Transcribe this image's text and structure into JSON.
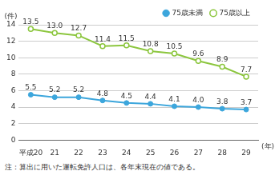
{
  "chart_data": {
    "type": "line",
    "categories": [
      "平成20",
      "21",
      "22",
      "23",
      "24",
      "25",
      "26",
      "27",
      "28",
      "29"
    ],
    "x_label": "(年)",
    "y_label": "(件)",
    "note": "注：算出に用いた運転免許人口は、各年末現在の値である。",
    "series": [
      {
        "name": "75歳未満",
        "color": "#3ca6dc",
        "marker": "circle",
        "values": [
          5.5,
          5.2,
          5.2,
          4.8,
          4.5,
          4.4,
          4.1,
          4.0,
          3.8,
          3.7
        ],
        "value_labels": [
          "5.5",
          "5.2",
          "5.2",
          "4.8",
          "4.5",
          "4.4",
          "4.1",
          "4.0",
          "3.8",
          "3.7"
        ]
      },
      {
        "name": "75歳以上",
        "color": "#8cc63e",
        "marker": "circle_open",
        "values": [
          13.5,
          13.0,
          12.7,
          11.4,
          11.5,
          10.8,
          10.5,
          9.6,
          8.9,
          7.7
        ],
        "value_labels": [
          "13.5",
          "13.0",
          "12.7",
          "11.4",
          "11.5",
          "10.8",
          "10.5",
          "9.6",
          "8.9",
          "7.7"
        ]
      }
    ],
    "ylim": [
      0,
      14
    ],
    "yticks": [
      0,
      2,
      4,
      6,
      8,
      10,
      12,
      14
    ],
    "grid": true,
    "legend": "top-right",
    "data_labels": true
  }
}
